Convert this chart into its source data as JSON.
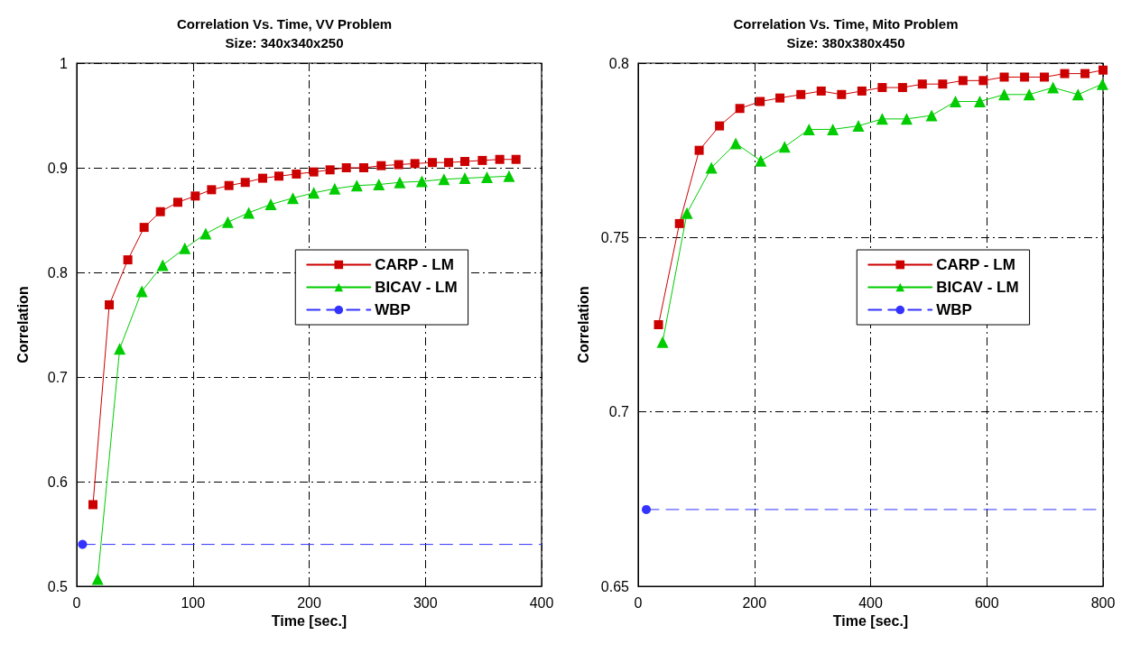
{
  "chart_data": [
    {
      "type": "line",
      "title": "Correlation Vs. Time, VV Problem",
      "subtitle": "Size: 340x340x250",
      "xlabel": "Time [sec.]",
      "ylabel": "Correlation",
      "xlim": [
        0,
        400
      ],
      "xticks": [
        0,
        100,
        200,
        300,
        400
      ],
      "ylim": [
        0.5,
        1
      ],
      "yticks": [
        0.5,
        0.6,
        0.7,
        0.8,
        0.9,
        1
      ],
      "grid": true,
      "legend": "center",
      "series": [
        {
          "name": "CARP - LM",
          "color": "#cc0000",
          "marker": "square",
          "line_style": "solid",
          "x": [
            14,
            28,
            44,
            58,
            72,
            87,
            102,
            116,
            131,
            145,
            160,
            174,
            189,
            204,
            218,
            232,
            247,
            262,
            277,
            291,
            306,
            320,
            334,
            349,
            364,
            378
          ],
          "values": [
            0.578,
            0.769,
            0.812,
            0.843,
            0.858,
            0.867,
            0.873,
            0.879,
            0.883,
            0.886,
            0.89,
            0.892,
            0.894,
            0.896,
            0.898,
            0.9,
            0.9,
            0.902,
            0.903,
            0.904,
            0.905,
            0.905,
            0.906,
            0.907,
            0.908,
            0.908
          ]
        },
        {
          "name": "BICAV - LM",
          "color": "#00cc00",
          "marker": "triangle",
          "line_style": "solid",
          "x": [
            18,
            37,
            56,
            74,
            93,
            111,
            130,
            148,
            167,
            186,
            204,
            222,
            241,
            260,
            278,
            297,
            316,
            334,
            353,
            372
          ],
          "values": [
            0.507,
            0.727,
            0.782,
            0.807,
            0.823,
            0.837,
            0.848,
            0.857,
            0.865,
            0.871,
            0.876,
            0.88,
            0.883,
            0.884,
            0.886,
            0.887,
            0.889,
            0.89,
            0.891,
            0.892
          ]
        },
        {
          "name": "WBP",
          "color": "#3333ff",
          "marker": "circle",
          "line_style": "dashed",
          "x": [
            5,
            400
          ],
          "values": [
            0.54,
            0.54
          ]
        }
      ]
    },
    {
      "type": "line",
      "title": "Correlation Vs. Time, Mito Problem",
      "subtitle": "Size: 380x380x450",
      "xlabel": "Time [sec.]",
      "ylabel": "Correlation",
      "xlim": [
        0,
        800
      ],
      "xticks": [
        0,
        200,
        400,
        600,
        800
      ],
      "ylim": [
        0.65,
        0.8
      ],
      "yticks": [
        0.65,
        0.7,
        0.75,
        0.8
      ],
      "grid": true,
      "legend": "center",
      "series": [
        {
          "name": "CARP - LM",
          "color": "#cc0000",
          "marker": "square",
          "line_style": "solid",
          "x": [
            35,
            71,
            105,
            140,
            175,
            210,
            244,
            280,
            315,
            350,
            385,
            420,
            455,
            489,
            524,
            559,
            594,
            630,
            665,
            699,
            734,
            769,
            800
          ],
          "values": [
            0.725,
            0.754,
            0.775,
            0.782,
            0.787,
            0.789,
            0.79,
            0.791,
            0.792,
            0.791,
            0.792,
            0.793,
            0.793,
            0.794,
            0.794,
            0.795,
            0.795,
            0.796,
            0.796,
            0.796,
            0.797,
            0.797,
            0.798
          ]
        },
        {
          "name": "BICAV - LM",
          "color": "#00cc00",
          "marker": "triangle",
          "line_style": "solid",
          "x": [
            42,
            84,
            126,
            168,
            211,
            252,
            294,
            335,
            379,
            420,
            462,
            505,
            546,
            588,
            630,
            673,
            714,
            757,
            799
          ],
          "values": [
            0.72,
            0.757,
            0.77,
            0.777,
            0.772,
            0.776,
            0.781,
            0.781,
            0.782,
            0.784,
            0.784,
            0.785,
            0.789,
            0.789,
            0.791,
            0.791,
            0.793,
            0.791,
            0.794
          ]
        },
        {
          "name": "WBP",
          "color": "#3333ff",
          "marker": "circle",
          "line_style": "dashed",
          "x": [
            14,
            800
          ],
          "values": [
            0.672,
            0.672
          ]
        }
      ]
    }
  ]
}
